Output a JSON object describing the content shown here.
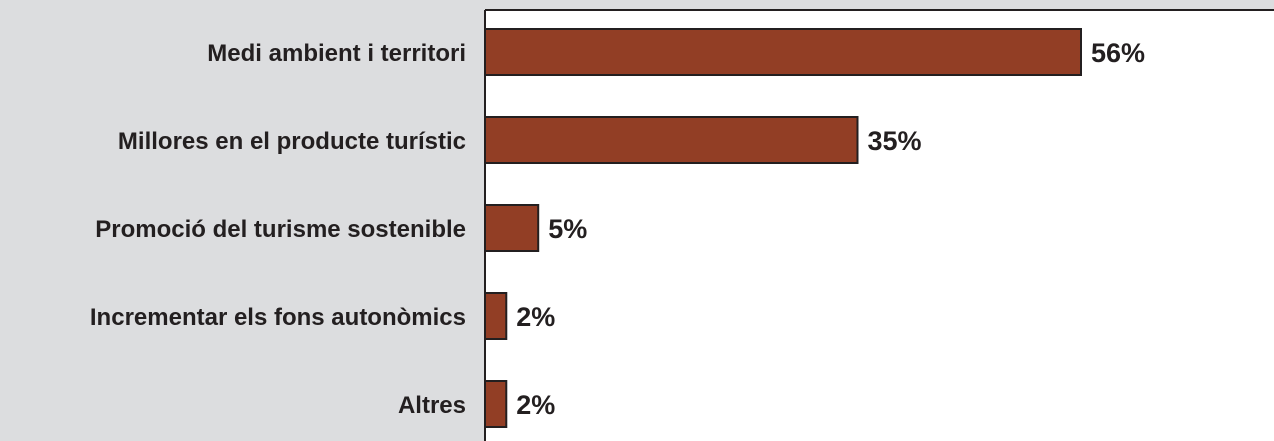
{
  "chart_data": {
    "type": "bar",
    "orientation": "horizontal",
    "categories": [
      "Medi ambient i territori",
      "Millores en el producte turístic",
      "Promoció del turisme sostenible",
      "Incrementar els fons autonòmics",
      "Altres"
    ],
    "values": [
      56,
      35,
      5,
      2,
      2
    ],
    "value_labels": [
      "56%",
      "35%",
      "5%",
      "2%",
      "2%"
    ],
    "unit": "%",
    "xlim": [
      0,
      73
    ],
    "grid": false,
    "legend": "none",
    "colors": {
      "bar": "#923e25",
      "bar_stroke": "#231f20",
      "category_panel": "#dcdddf",
      "plot_background": "#ffffff",
      "text": "#231f20"
    }
  }
}
